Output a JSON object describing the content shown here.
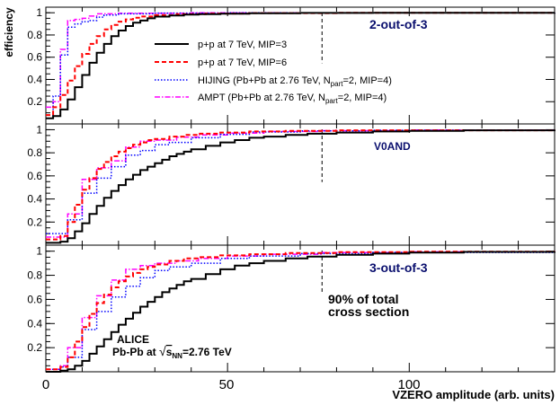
{
  "chart_data": {
    "type": "line",
    "ylabel": "efficiency",
    "xlabel": "VZERO amplitude (arb. units)",
    "xlim": [
      0,
      140
    ],
    "x_ticks": [
      "0",
      "50",
      "100"
    ],
    "y_ticks": [
      "0.2",
      "0.4",
      "0.6",
      "0.8",
      "1"
    ],
    "marker_x": 76,
    "legend": [
      {
        "key": "pp_mip3",
        "label": "p+p at 7 TeV, MIP=3",
        "color": "#000000",
        "dash": "",
        "width": 2
      },
      {
        "key": "pp_mip6",
        "label": "p+p at 7 TeV, MIP=6",
        "color": "#ff0000",
        "dash": "5 3",
        "width": 2
      },
      {
        "key": "hijing",
        "label_pre": "HIJING (Pb+Pb at 2.76 TeV, N",
        "label_sub": "part",
        "label_post": "=2, MIP=4)",
        "color": "#0000ff",
        "dash": "1.5 2",
        "width": 1.5
      },
      {
        "key": "ampt",
        "label_pre": "AMPT (Pb+Pb at 2.76 TeV, N",
        "label_sub": "part",
        "label_post": "=2, MIP=4)",
        "color": "#ff00ff",
        "dash": "6 2 1.5 2",
        "width": 1.5
      }
    ],
    "panels": [
      {
        "title": "2-out-of-3",
        "ylim": [
          0,
          1.05
        ],
        "series": {
          "pp_mip3": [
            [
              0,
              0.05
            ],
            [
              2,
              0.07
            ],
            [
              4,
              0.13
            ],
            [
              6,
              0.22
            ],
            [
              8,
              0.33
            ],
            [
              10,
              0.44
            ],
            [
              12,
              0.55
            ],
            [
              14,
              0.64
            ],
            [
              16,
              0.72
            ],
            [
              18,
              0.79
            ],
            [
              20,
              0.84
            ],
            [
              22,
              0.88
            ],
            [
              24,
              0.91
            ],
            [
              26,
              0.93
            ],
            [
              28,
              0.95
            ],
            [
              30,
              0.965
            ],
            [
              34,
              0.975
            ],
            [
              38,
              0.983
            ],
            [
              42,
              0.988
            ],
            [
              48,
              0.992
            ],
            [
              56,
              0.995
            ],
            [
              70,
              0.998
            ],
            [
              90,
              0.999
            ],
            [
              140,
              1.0
            ]
          ],
          "pp_mip6": [
            [
              0,
              0.08
            ],
            [
              2,
              0.15
            ],
            [
              4,
              0.26
            ],
            [
              6,
              0.39
            ],
            [
              8,
              0.52
            ],
            [
              10,
              0.63
            ],
            [
              12,
              0.72
            ],
            [
              14,
              0.79
            ],
            [
              16,
              0.85
            ],
            [
              18,
              0.89
            ],
            [
              20,
              0.92
            ],
            [
              22,
              0.94
            ],
            [
              24,
              0.955
            ],
            [
              26,
              0.966
            ],
            [
              30,
              0.978
            ],
            [
              36,
              0.987
            ],
            [
              44,
              0.993
            ],
            [
              56,
              0.997
            ],
            [
              80,
              0.999
            ],
            [
              140,
              1.0
            ]
          ],
          "hijing": [
            [
              0,
              0.05
            ],
            [
              2,
              0.25
            ],
            [
              4,
              0.62
            ],
            [
              6,
              0.87
            ],
            [
              8,
              0.9
            ],
            [
              10,
              0.92
            ],
            [
              12,
              0.93
            ],
            [
              14,
              0.96
            ],
            [
              16,
              0.98
            ],
            [
              20,
              0.99
            ],
            [
              30,
              0.997
            ],
            [
              50,
              0.999
            ],
            [
              140,
              1.0
            ]
          ],
          "ampt": [
            [
              0,
              0.15
            ],
            [
              2,
              0.2
            ],
            [
              4,
              0.67
            ],
            [
              6,
              0.93
            ],
            [
              8,
              0.94
            ],
            [
              10,
              0.95
            ],
            [
              12,
              0.97
            ],
            [
              14,
              0.99
            ],
            [
              20,
              0.995
            ],
            [
              40,
              0.999
            ],
            [
              140,
              1.0
            ]
          ]
        }
      },
      {
        "title": "V0AND",
        "ylim": [
          0,
          1.05
        ],
        "series": {
          "pp_mip3": [
            [
              0,
              0.02
            ],
            [
              4,
              0.03
            ],
            [
              6,
              0.06
            ],
            [
              8,
              0.12
            ],
            [
              10,
              0.19
            ],
            [
              12,
              0.27
            ],
            [
              14,
              0.34
            ],
            [
              16,
              0.41
            ],
            [
              18,
              0.47
            ],
            [
              20,
              0.52
            ],
            [
              22,
              0.57
            ],
            [
              24,
              0.61
            ],
            [
              26,
              0.65
            ],
            [
              28,
              0.68
            ],
            [
              30,
              0.71
            ],
            [
              32,
              0.74
            ],
            [
              34,
              0.77
            ],
            [
              36,
              0.79
            ],
            [
              38,
              0.81
            ],
            [
              40,
              0.83
            ],
            [
              44,
              0.86
            ],
            [
              48,
              0.89
            ],
            [
              52,
              0.91
            ],
            [
              56,
              0.93
            ],
            [
              60,
              0.94
            ],
            [
              66,
              0.955
            ],
            [
              72,
              0.965
            ],
            [
              80,
              0.975
            ],
            [
              90,
              0.985
            ],
            [
              100,
              0.99
            ],
            [
              115,
              0.995
            ],
            [
              140,
              1.0
            ]
          ],
          "pp_mip6": [
            [
              0,
              0.05
            ],
            [
              4,
              0.08
            ],
            [
              6,
              0.2
            ],
            [
              8,
              0.35
            ],
            [
              10,
              0.48
            ],
            [
              12,
              0.58
            ],
            [
              14,
              0.66
            ],
            [
              16,
              0.72
            ],
            [
              18,
              0.77
            ],
            [
              20,
              0.81
            ],
            [
              22,
              0.84
            ],
            [
              24,
              0.87
            ],
            [
              26,
              0.89
            ],
            [
              28,
              0.91
            ],
            [
              30,
              0.92
            ],
            [
              34,
              0.94
            ],
            [
              38,
              0.955
            ],
            [
              42,
              0.965
            ],
            [
              48,
              0.975
            ],
            [
              56,
              0.985
            ],
            [
              66,
              0.99
            ],
            [
              80,
              0.995
            ],
            [
              140,
              1.0
            ]
          ],
          "hijing": [
            [
              0,
              0.1
            ],
            [
              4,
              0.1
            ],
            [
              6,
              0.22
            ],
            [
              10,
              0.45
            ],
            [
              14,
              0.58
            ],
            [
              18,
              0.68
            ],
            [
              22,
              0.78
            ],
            [
              26,
              0.82
            ],
            [
              30,
              0.87
            ],
            [
              34,
              0.89
            ],
            [
              40,
              0.93
            ],
            [
              48,
              0.96
            ],
            [
              56,
              0.98
            ],
            [
              70,
              0.99
            ],
            [
              90,
              0.995
            ],
            [
              140,
              1.0
            ]
          ],
          "ampt": [
            [
              0,
              0.07
            ],
            [
              4,
              0.07
            ],
            [
              6,
              0.27
            ],
            [
              10,
              0.57
            ],
            [
              14,
              0.67
            ],
            [
              18,
              0.73
            ],
            [
              22,
              0.85
            ],
            [
              26,
              0.9
            ],
            [
              30,
              0.91
            ],
            [
              36,
              0.935
            ],
            [
              42,
              0.955
            ],
            [
              50,
              0.97
            ],
            [
              60,
              0.985
            ],
            [
              76,
              0.992
            ],
            [
              100,
              0.997
            ],
            [
              140,
              1.0
            ]
          ]
        }
      },
      {
        "title": "3-out-of-3",
        "ylim": [
          0,
          1.05
        ],
        "series": {
          "pp_mip3": [
            [
              0,
              0.0
            ],
            [
              4,
              0.01
            ],
            [
              6,
              0.02
            ],
            [
              8,
              0.05
            ],
            [
              10,
              0.09
            ],
            [
              12,
              0.15
            ],
            [
              14,
              0.21
            ],
            [
              16,
              0.27
            ],
            [
              18,
              0.33
            ],
            [
              20,
              0.39
            ],
            [
              22,
              0.44
            ],
            [
              24,
              0.49
            ],
            [
              26,
              0.54
            ],
            [
              28,
              0.58
            ],
            [
              30,
              0.62
            ],
            [
              32,
              0.66
            ],
            [
              34,
              0.69
            ],
            [
              36,
              0.72
            ],
            [
              38,
              0.75
            ],
            [
              40,
              0.77
            ],
            [
              44,
              0.81
            ],
            [
              48,
              0.85
            ],
            [
              52,
              0.88
            ],
            [
              56,
              0.9
            ],
            [
              60,
              0.92
            ],
            [
              66,
              0.94
            ],
            [
              72,
              0.955
            ],
            [
              80,
              0.97
            ],
            [
              90,
              0.98
            ],
            [
              100,
              0.988
            ],
            [
              115,
              0.994
            ],
            [
              140,
              0.998
            ]
          ],
          "pp_mip6": [
            [
              0,
              0.02
            ],
            [
              4,
              0.04
            ],
            [
              6,
              0.12
            ],
            [
              8,
              0.25
            ],
            [
              10,
              0.37
            ],
            [
              12,
              0.48
            ],
            [
              14,
              0.57
            ],
            [
              16,
              0.64
            ],
            [
              18,
              0.7
            ],
            [
              20,
              0.75
            ],
            [
              22,
              0.79
            ],
            [
              24,
              0.82
            ],
            [
              26,
              0.85
            ],
            [
              28,
              0.87
            ],
            [
              30,
              0.89
            ],
            [
              34,
              0.92
            ],
            [
              38,
              0.94
            ],
            [
              42,
              0.95
            ],
            [
              48,
              0.965
            ],
            [
              56,
              0.975
            ],
            [
              66,
              0.985
            ],
            [
              80,
              0.992
            ],
            [
              100,
              0.996
            ],
            [
              140,
              1.0
            ]
          ],
          "hijing": [
            [
              0,
              0.02
            ],
            [
              4,
              0.04
            ],
            [
              6,
              0.12
            ],
            [
              10,
              0.35
            ],
            [
              14,
              0.5
            ],
            [
              18,
              0.62
            ],
            [
              22,
              0.71
            ],
            [
              26,
              0.78
            ],
            [
              30,
              0.84
            ],
            [
              34,
              0.87
            ],
            [
              40,
              0.9
            ],
            [
              48,
              0.94
            ],
            [
              56,
              0.96
            ],
            [
              70,
              0.98
            ],
            [
              90,
              0.99
            ],
            [
              140,
              1.0
            ]
          ],
          "ampt": [
            [
              0,
              0.02
            ],
            [
              4,
              0.05
            ],
            [
              6,
              0.2
            ],
            [
              10,
              0.45
            ],
            [
              14,
              0.63
            ],
            [
              18,
              0.76
            ],
            [
              22,
              0.85
            ],
            [
              26,
              0.88
            ],
            [
              30,
              0.9
            ],
            [
              36,
              0.92
            ],
            [
              42,
              0.94
            ],
            [
              50,
              0.96
            ],
            [
              60,
              0.975
            ],
            [
              76,
              0.988
            ],
            [
              100,
              0.995
            ],
            [
              140,
              1.0
            ]
          ]
        }
      }
    ],
    "annotation_line1": "90% of total",
    "annotation_line2": "cross section",
    "alice_line1": "ALICE",
    "alice_pre": "Pb-Pb at ",
    "alice_s": "s",
    "alice_sub": "NN",
    "alice_post": "=2.76 TeV"
  }
}
